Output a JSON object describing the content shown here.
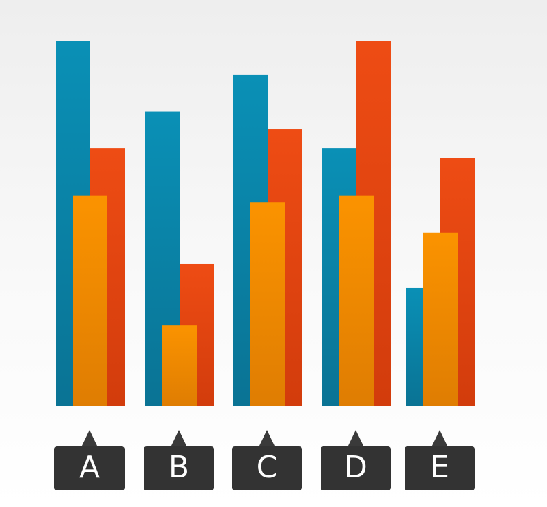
{
  "chart_data": {
    "type": "bar",
    "title": "",
    "xlabel": "",
    "ylabel": "",
    "categories": [
      "A",
      "B",
      "C",
      "D",
      "E"
    ],
    "ylim": [
      0,
      100
    ],
    "grid": false,
    "legend": "none",
    "series": [
      {
        "color_top": "#0a90b6",
        "color_bottom": "#0a7394",
        "values": [
          100,
          80.5,
          90.6,
          70.6,
          32.4
        ]
      },
      {
        "color_top": "#ee4c14",
        "color_bottom": "#d23c0c",
        "values": [
          70.6,
          38.8,
          75.7,
          100,
          67.8
        ]
      },
      {
        "color_top": "#fb9300",
        "color_bottom": "#df7d02",
        "values": [
          57.5,
          22.0,
          55.7,
          57.5,
          47.5
        ]
      }
    ]
  }
}
